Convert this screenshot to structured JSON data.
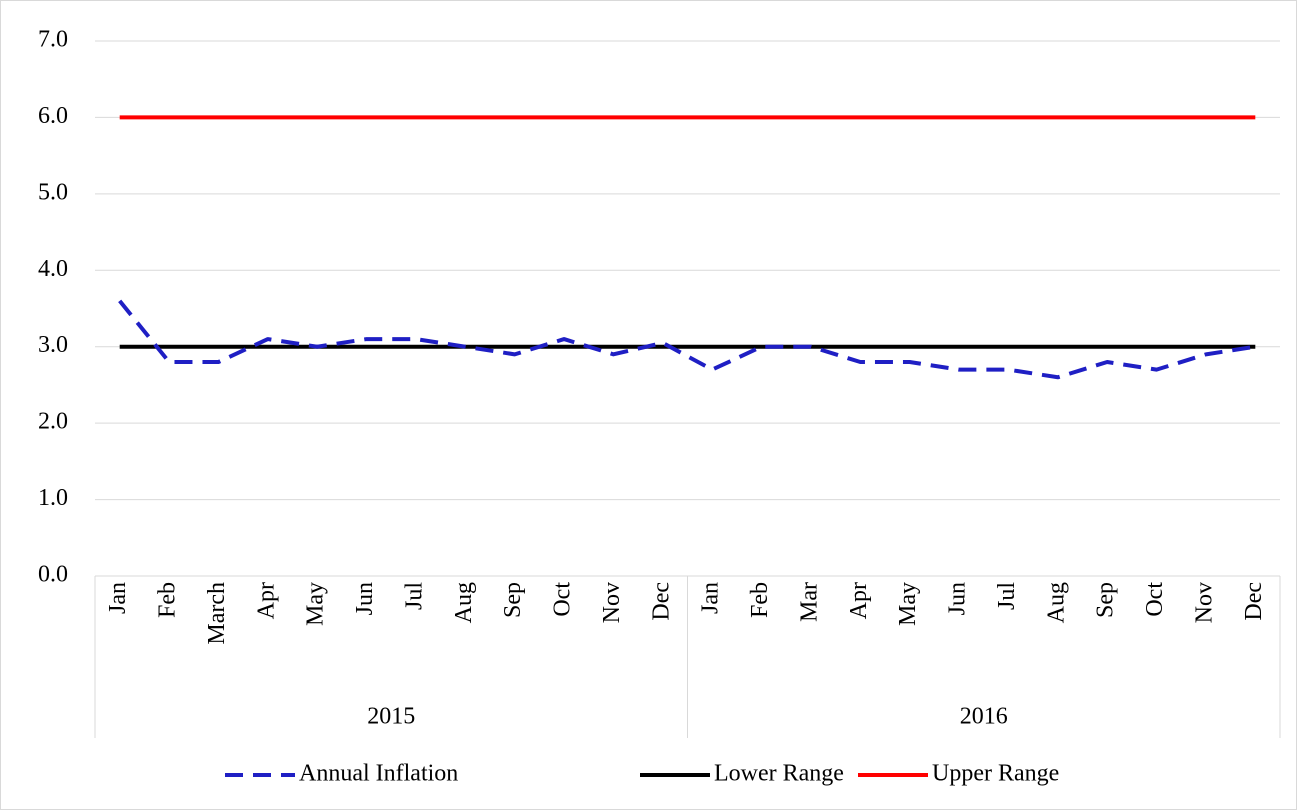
{
  "chart_data": {
    "type": "line",
    "categories": [
      "Jan",
      "Feb",
      "March",
      "Apr",
      "May",
      "Jun",
      "Jul",
      "Aug",
      "Sep",
      "Oct",
      "Nov",
      "Dec",
      "Jan",
      "Feb",
      "Mar",
      "Apr",
      "May",
      "Jun",
      "Jul",
      "Aug",
      "Sep",
      "Oct",
      "Nov",
      "Dec"
    ],
    "category_groups": [
      "2015",
      "2016"
    ],
    "series": [
      {
        "name": "Annual Inflation",
        "color": "#1f1fc4",
        "style": "dashed",
        "values": [
          3.6,
          2.8,
          2.8,
          3.1,
          3.0,
          3.1,
          3.1,
          3.0,
          2.9,
          3.1,
          2.9,
          3.05,
          2.7,
          3.0,
          3.0,
          2.8,
          2.8,
          2.7,
          2.7,
          2.6,
          2.8,
          2.7,
          2.9,
          3.0
        ]
      },
      {
        "name": "Lower Range",
        "color": "#000000",
        "style": "solid",
        "values": [
          3,
          3,
          3,
          3,
          3,
          3,
          3,
          3,
          3,
          3,
          3,
          3,
          3,
          3,
          3,
          3,
          3,
          3,
          3,
          3,
          3,
          3,
          3,
          3
        ]
      },
      {
        "name": "Upper Range",
        "color": "#ff0000",
        "style": "solid",
        "values": [
          6,
          6,
          6,
          6,
          6,
          6,
          6,
          6,
          6,
          6,
          6,
          6,
          6,
          6,
          6,
          6,
          6,
          6,
          6,
          6,
          6,
          6,
          6,
          6
        ]
      }
    ],
    "ylim": [
      0,
      7
    ],
    "yticks": [
      {
        "value": 0,
        "label": "0.0"
      },
      {
        "value": 1,
        "label": "1.0"
      },
      {
        "value": 2,
        "label": "2.0"
      },
      {
        "value": 3,
        "label": "3.0"
      },
      {
        "value": 4,
        "label": "4.0"
      },
      {
        "value": 5,
        "label": "5.0"
      },
      {
        "value": 6,
        "label": "6.0"
      },
      {
        "value": 7,
        "label": "7.0"
      }
    ],
    "grid": true,
    "legend": "bottom"
  }
}
